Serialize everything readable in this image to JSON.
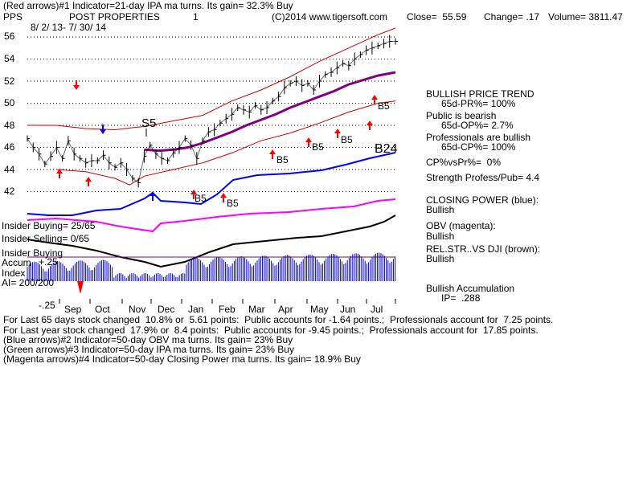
{
  "header": {
    "line1": "(Red arrows)#1 Indicator=21-day IPA ma turns. Its gain= 32.3% Buy",
    "symbol": "PPS",
    "company": "POST PROPERTIES",
    "chart_num": "1",
    "copyright": "(C)2014 www.tigersoft.com",
    "close": "Close=  55.59",
    "change": "Change= .17",
    "volume": "Volume= 3811.47",
    "dates": "8/ 2/ 13- 7/ 30/ 14"
  },
  "right_panel": {
    "trend_title": "BULLISH PRICE TREND",
    "pr": "65d-PR%= 100%",
    "public": "Public is bearish",
    "op": "65d-OP%= 2.7%",
    "pros": "Professionals are bullish",
    "cp": "65d-CP%= 100%",
    "cpvspr": "CP%vsPr%=  0%",
    "strength": "Strength Profess/Pub= 4.4",
    "cp_title": "CLOSING POWER (blue):",
    "cp_val": "Bullish",
    "obv_title": "OBV (magenta):",
    "obv_val": "Bullish",
    "rel_title": "REL.STR..VS DJI (brown):",
    "rel_val": "Bullish",
    "accum_title": "Bullish Accumulation",
    "ip": "IP=  .288"
  },
  "left_labels": {
    "insider_buying": "Insider Buying= 25/65",
    "insider_selling": "Insider Selling= 0/65",
    "insider_buying2": "Insider Buying",
    "accum": "Accum",
    "plus25": "+.25",
    "index": "Index",
    "ai": "AI= 200/200",
    "minus25": "-.25"
  },
  "signals": {
    "s5": "S5",
    "b5a": "B5",
    "b5b": "B5",
    "b5c": "B5",
    "b5d": "B5",
    "b5e": "B5",
    "b5f": "B5",
    "b24": "B24"
  },
  "footer": {
    "line1": "For Last 65 days stock changed  10.8% or  5.61 points:  Public accounts for -1.64 points.;  Professionals account for  7.25 points.",
    "line2": "For Last year stock changed  17.9% or  8.4 points:  Public accounts for -9.45 points.;  Professionals account for  17.85 points.",
    "line3": "(Blue arrows)#2 Indicator=50-day OBV ma turns. Its gain= 23% Buy",
    "line4": "(Green arrows)#3 Indicator=50-day IPA ma turns. Its gain= 23% Buy",
    "line5": "(Magenta arrows)#4 Indicator=50-day Closing Power ma turns. Its gain= 18.9% Buy"
  },
  "colors": {
    "price": "#000000",
    "band": "#cc0000",
    "ma": "#800080",
    "closing_power": "#0000ff",
    "obv": "#ff00ff",
    "relstr": "#000000",
    "accum": "#0000cc",
    "arrow_red": "#ff0000",
    "arrow_blue": "#0000ff"
  },
  "chart_data": {
    "type": "line",
    "title": "POST PROPERTIES",
    "x_tick_labels": [
      "Sep",
      "Oct",
      "Nov",
      "Dec",
      "Jan",
      "Feb",
      "Mar",
      "Apr",
      "May",
      "Jun",
      "Jul"
    ],
    "y_tick_labels": [
      "42",
      "44",
      "46",
      "48",
      "50",
      "52",
      "54",
      "56"
    ],
    "ylim": [
      41,
      57
    ],
    "series": [
      {
        "name": "Price",
        "x": [
          0,
          4,
          8,
          12,
          16,
          20,
          24,
          28,
          32,
          36,
          40,
          44,
          48,
          52,
          56,
          60,
          64,
          68,
          72,
          76,
          80,
          84,
          88,
          92,
          96,
          100,
          104,
          108,
          112,
          116,
          120,
          124,
          128,
          132,
          136,
          140,
          144,
          148,
          152,
          156,
          160,
          164,
          168,
          172,
          176,
          180,
          184,
          188,
          192,
          196,
          200,
          204,
          208,
          212,
          216,
          220,
          224,
          228,
          232,
          236,
          240,
          244,
          248,
          252
        ],
        "y": [
          46.8,
          46.0,
          45.4,
          44.5,
          45.2,
          46.0,
          45.0,
          46.6,
          45.4,
          45.0,
          44.6,
          44.8,
          44.8,
          45.3,
          44.6,
          44.2,
          44.6,
          44.0,
          43.2,
          42.8,
          45.2,
          46.2,
          45.4,
          45.0,
          44.8,
          45.5,
          46.0,
          46.8,
          46.2,
          45.0,
          46.6,
          47.4,
          47.6,
          48.2,
          48.6,
          49.0,
          49.6,
          49.4,
          49.2,
          49.8,
          49.4,
          49.6,
          50.2,
          50.6,
          51.4,
          51.8,
          52.0,
          51.6,
          51.8,
          51.2,
          52.0,
          52.6,
          52.8,
          53.2,
          53.6,
          53.4,
          54.0,
          54.4,
          54.8,
          55.0,
          55.2,
          55.4,
          55.6,
          55.6
        ]
      },
      {
        "name": "Upper band",
        "x": [
          0,
          20,
          40,
          60,
          80,
          100,
          120,
          140,
          160,
          180,
          200,
          220,
          240,
          252
        ],
        "y": [
          48.0,
          48.0,
          47.7,
          47.6,
          47.9,
          48.4,
          48.9,
          50.2,
          51.2,
          52.4,
          53.8,
          55.0,
          56.2,
          56.8
        ]
      },
      {
        "name": "Moving average",
        "x": [
          80,
          90,
          100,
          110,
          120,
          130,
          140,
          150,
          160,
          170,
          180,
          190,
          200,
          210,
          220,
          230,
          240,
          252
        ],
        "y": [
          45.8,
          45.7,
          45.8,
          46.0,
          46.4,
          46.9,
          47.4,
          48.0,
          48.5,
          49.0,
          49.6,
          50.1,
          50.6,
          51.1,
          51.7,
          52.1,
          52.5,
          52.8
        ]
      },
      {
        "name": "Lower band",
        "x": [
          20,
          40,
          60,
          70,
          80,
          100,
          120,
          140,
          160,
          180,
          200,
          220,
          240,
          252
        ],
        "y": [
          44.0,
          43.8,
          43.2,
          42.6,
          43.4,
          44.0,
          44.6,
          45.5,
          46.6,
          47.3,
          48.2,
          49.2,
          50.0,
          50.2
        ]
      }
    ]
  }
}
